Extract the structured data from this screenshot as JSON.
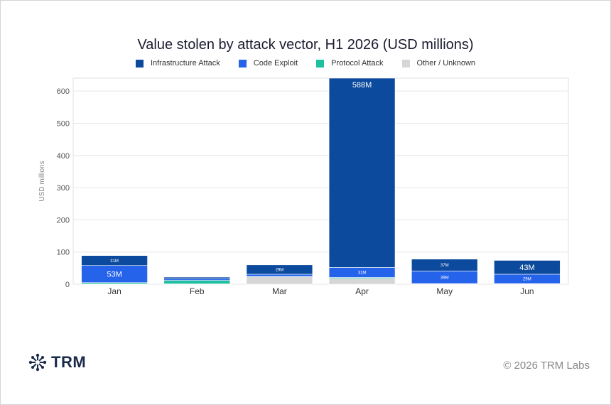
{
  "chart_data": {
    "type": "bar",
    "stacked": true,
    "title": "Value stolen by attack vector, H1 2026 (USD millions)",
    "ylabel": "USD millions",
    "xlabel": "",
    "ylim": [
      0,
      640
    ],
    "yticks": [
      0,
      100,
      200,
      300,
      400,
      500,
      600
    ],
    "grid": true,
    "legend_position": "top",
    "categories": [
      "Jan",
      "Feb",
      "Mar",
      "Apr",
      "May",
      "Jun"
    ],
    "series": [
      {
        "name": "Other / Unknown",
        "color": "#d6d6d6",
        "values": [
          1,
          1,
          23,
          18,
          1,
          1
        ],
        "labels": [
          "",
          "",
          "",
          "",
          "",
          ""
        ]
      },
      {
        "name": "Protocol Attack",
        "color": "#1fbf9f",
        "values": [
          4,
          11,
          1,
          3,
          1,
          1
        ],
        "labels": [
          "",
          "",
          "",
          "",
          "",
          ""
        ]
      },
      {
        "name": "Code Exploit",
        "color": "#2563eb",
        "values": [
          53,
          5,
          7,
          31,
          39,
          29
        ],
        "labels": [
          "53M",
          "",
          "",
          "31M",
          "39M",
          "29M"
        ]
      },
      {
        "name": "Infrastructure Attack",
        "color": "#0b4a9c",
        "values": [
          31,
          5,
          29,
          588,
          37,
          43
        ],
        "labels": [
          "31M",
          "",
          "29M",
          "588M",
          "37M",
          "43M"
        ]
      }
    ]
  },
  "legend_order": [
    "Infrastructure Attack",
    "Code Exploit",
    "Protocol Attack",
    "Other / Unknown"
  ],
  "footer": {
    "brand": "TRM",
    "copyright": "© 2026 TRM Labs"
  }
}
